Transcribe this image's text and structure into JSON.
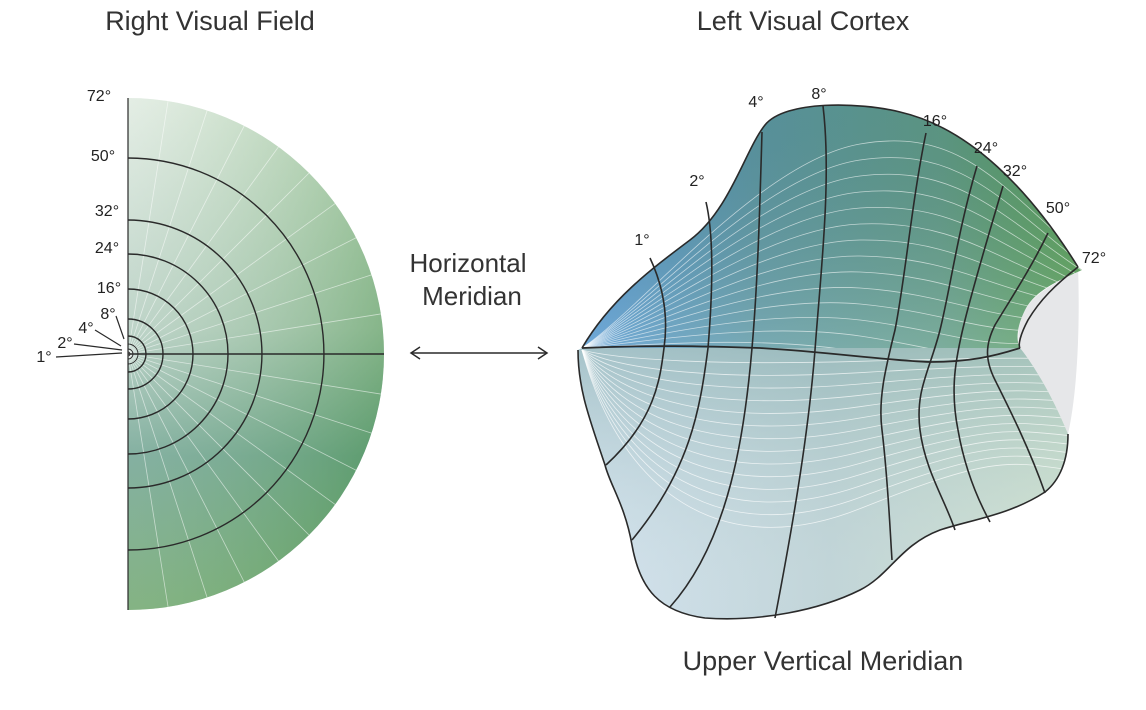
{
  "titles": {
    "visual_field": "Right Visual Field",
    "visual_cortex": "Left Visual Cortex"
  },
  "horizontal_meridian": {
    "line1": "Horizontal",
    "line2": "Meridian"
  },
  "upper_vertical_meridian": "Upper Vertical Meridian",
  "eccentricity_labels": [
    "1°",
    "2°",
    "4°",
    "8°",
    "16°",
    "24°",
    "32°",
    "50°",
    "72°"
  ],
  "colors": {
    "field_outer": "#5a9c52",
    "field_top": "#dde9df",
    "field_bottom_center": "#3e8a7c",
    "cortex_blue": "#4e94cc",
    "cortex_teal": "#5e9a90",
    "cortex_green": "#5c9c55",
    "cortex_lower_light": "#d9e6ec",
    "cortex_gap": "#e6e7e9",
    "line": "#2a2a2a"
  }
}
